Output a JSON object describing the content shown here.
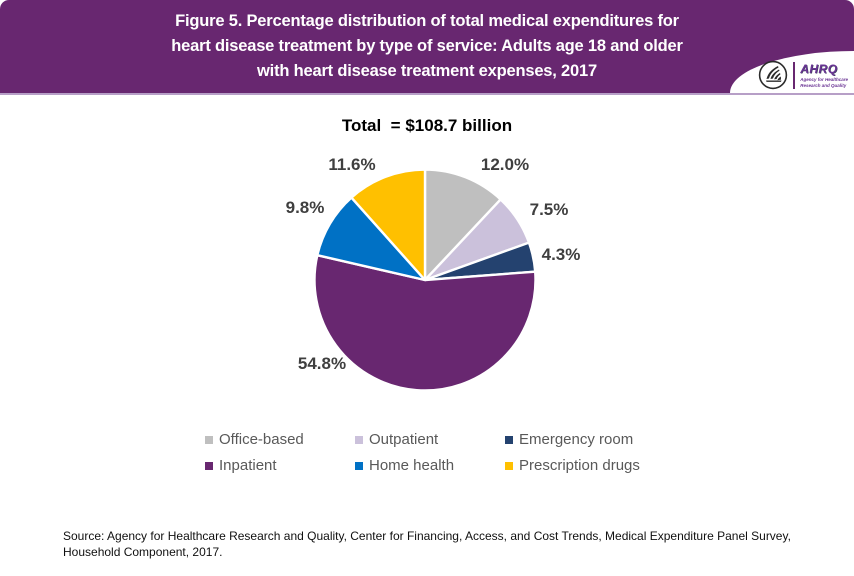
{
  "header": {
    "title_lines": [
      "Figure 5. Percentage distribution of total medical expenditures for",
      "heart disease treatment by type of service: Adults age 18 and older",
      "with heart disease treatment expenses, 2017"
    ],
    "background_color": "#682770",
    "logo": {
      "ahrq_text": "AHRQ",
      "tagline_line1": "Agency for Healthcare",
      "tagline_line2": "Research and Quality"
    }
  },
  "chart_data": {
    "type": "pie",
    "title": "Total  = $108.7 billion",
    "start_angle_deg": 0,
    "direction": "clockwise",
    "slice_border_color": "#ffffff",
    "legend_position": "bottom",
    "slices": [
      {
        "name": "Office-based",
        "value": 12.0,
        "display": "12.0%",
        "color": "#BFBFBF"
      },
      {
        "name": "Outpatient",
        "value": 7.5,
        "display": "7.5%",
        "color": "#CBC1DB"
      },
      {
        "name": "Emergency room",
        "value": 4.3,
        "display": "4.3%",
        "color": "#24426F"
      },
      {
        "name": "Inpatient",
        "value": 54.8,
        "display": "54.8%",
        "color": "#682770"
      },
      {
        "name": "Home health",
        "value": 9.8,
        "display": "9.8%",
        "color": "#0071C5"
      },
      {
        "name": "Prescription drugs",
        "value": 11.6,
        "display": "11.6%",
        "color": "#FFC000"
      }
    ]
  },
  "source": {
    "line1": "Source: Agency for Healthcare Research and Quality, Center for Financing, Access, and Cost Trends, Medical Expenditure Panel Survey,",
    "line2": "Household Component, 2017."
  }
}
